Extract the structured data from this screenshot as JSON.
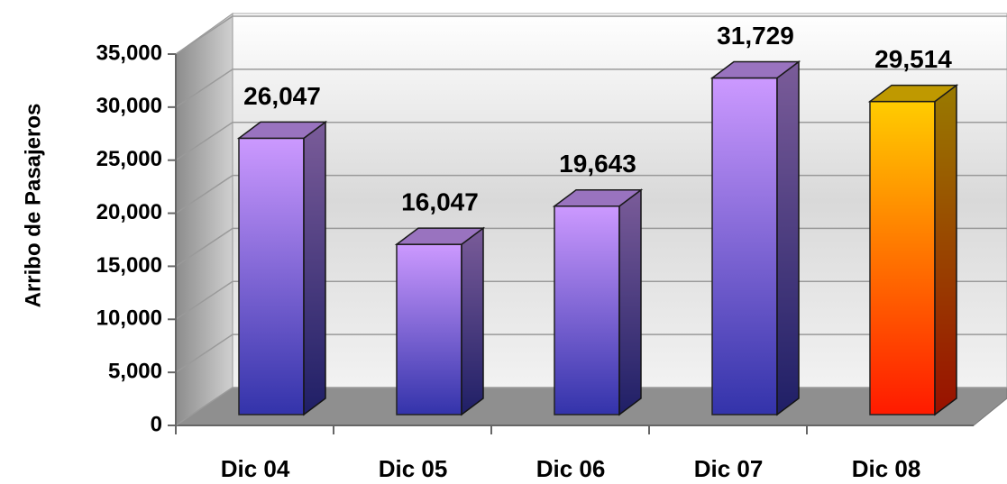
{
  "chart_data": {
    "type": "bar3d",
    "ylabel": "Arribo de Pasajeros",
    "categories": [
      "Dic 04",
      "Dic 05",
      "Dic 06",
      "Dic 07",
      "Dic 08"
    ],
    "values": [
      26047,
      16047,
      19643,
      31729,
      29514
    ],
    "value_labels": [
      "26,047",
      "16,047",
      "19,643",
      "31,729",
      "29,514"
    ],
    "colors": [
      [
        "#cc99ff",
        "#3333aa"
      ],
      [
        "#cc99ff",
        "#3333aa"
      ],
      [
        "#cc99ff",
        "#3333aa"
      ],
      [
        "#cc99ff",
        "#3333aa"
      ],
      [
        "#ffcc00",
        "#ff1a00"
      ]
    ],
    "ylim": [
      0,
      35000
    ],
    "yticks": [
      0,
      {
        "value": 5000,
        "label": "5,000"
      },
      {
        "value": 10000,
        "label": "10,000"
      },
      {
        "value": 15000,
        "label": "15,000"
      },
      {
        "value": 20000,
        "label": "20,000"
      },
      {
        "value": 25000,
        "label": "25,000"
      },
      {
        "value": 30000,
        "label": "30,000"
      },
      {
        "value": 35000,
        "label": "35,000"
      }
    ],
    "grid": true
  }
}
